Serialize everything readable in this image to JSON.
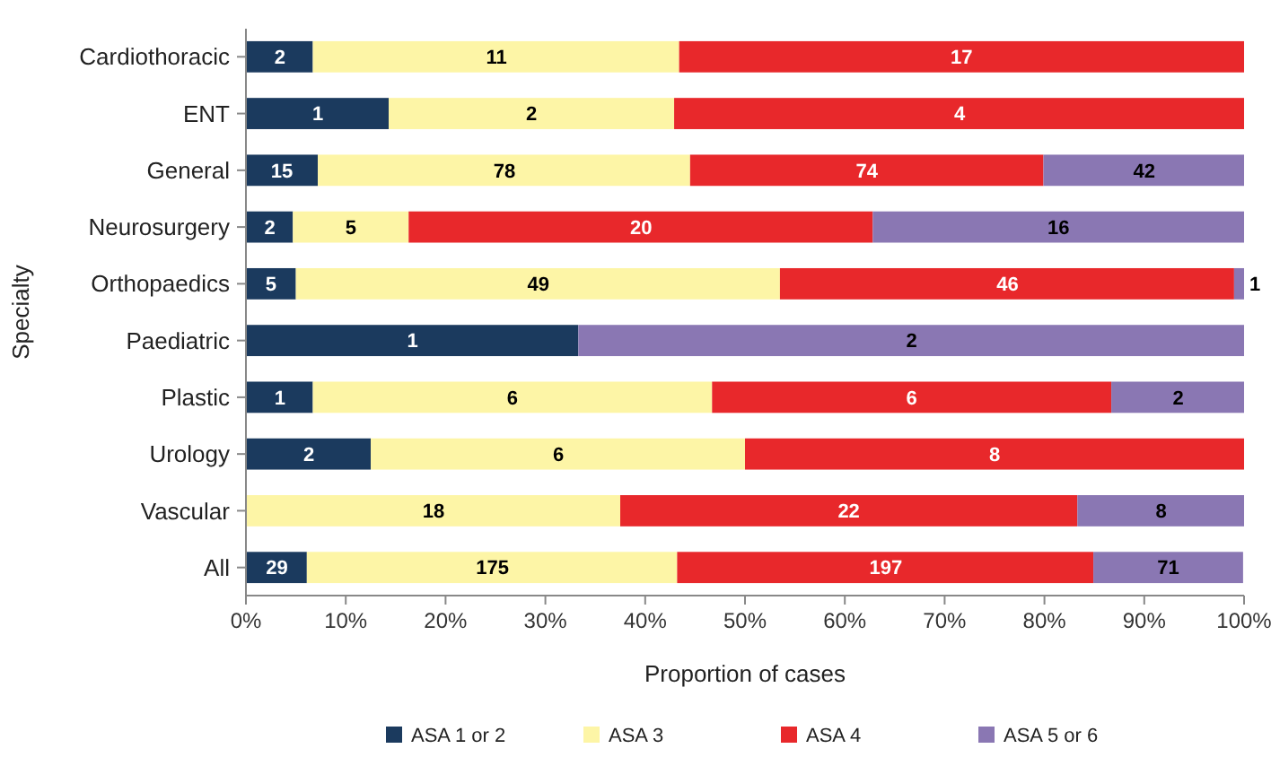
{
  "chart_data": {
    "type": "bar",
    "orientation": "horizontal",
    "stacked": true,
    "xlabel": "Proportion of cases",
    "ylabel": "Specialty",
    "categories": [
      "Cardiothoracic",
      "ENT",
      "General",
      "Neurosurgery",
      "Orthopaedics",
      "Paediatric",
      "Plastic",
      "Urology",
      "Vascular",
      "All"
    ],
    "xlim": [
      0,
      100
    ],
    "xticks": [
      {
        "value": 0,
        "label": "0%"
      },
      {
        "value": 10,
        "label": "10%"
      },
      {
        "value": 20,
        "label": "20%"
      },
      {
        "value": 30,
        "label": "30%"
      },
      {
        "value": 40,
        "label": "40%"
      },
      {
        "value": 50,
        "label": "50%"
      },
      {
        "value": 60,
        "label": "60%"
      },
      {
        "value": 70,
        "label": "70%"
      },
      {
        "value": 80,
        "label": "80%"
      },
      {
        "value": 90,
        "label": "90%"
      },
      {
        "value": 100,
        "label": "100%"
      }
    ],
    "series": [
      {
        "name": "ASA 1 or 2",
        "color": "#1b3a5e",
        "values": [
          6.7,
          14.3,
          7.2,
          4.7,
          5.0,
          33.3,
          6.7,
          12.5,
          0,
          6.1
        ]
      },
      {
        "name": "ASA 3",
        "color": "#fdf5a6",
        "values": [
          36.7,
          28.6,
          37.3,
          11.6,
          48.5,
          0,
          40.0,
          37.5,
          37.5,
          37.1
        ]
      },
      {
        "name": "ASA 4",
        "color": "#e8282b",
        "values": [
          56.6,
          57.1,
          35.4,
          46.5,
          45.5,
          0,
          40.0,
          50.0,
          45.8,
          41.7
        ]
      },
      {
        "name": "ASA 5 or 6",
        "color": "#8a77b3",
        "values": [
          0,
          0,
          20.1,
          37.2,
          1.0,
          66.7,
          13.3,
          0,
          16.7,
          15.0
        ]
      }
    ],
    "annotations": [
      {
        "text": "2",
        "x": 3.4,
        "y": "Cardiothoracic"
      },
      {
        "text": "11",
        "x": 25.1,
        "y": "Cardiothoracic"
      },
      {
        "text": "17",
        "x": 71.7,
        "y": "Cardiothoracic"
      },
      {
        "text": "1",
        "x": 7.2,
        "y": "ENT"
      },
      {
        "text": "2",
        "x": 28.6,
        "y": "ENT"
      },
      {
        "text": "4",
        "x": 71.5,
        "y": "ENT"
      },
      {
        "text": "15",
        "x": 3.6,
        "y": "General"
      },
      {
        "text": "78",
        "x": 25.9,
        "y": "General"
      },
      {
        "text": "74",
        "x": 62.2,
        "y": "General"
      },
      {
        "text": "42",
        "x": 90.0,
        "y": "General"
      },
      {
        "text": "2",
        "x": 2.4,
        "y": "Neurosurgery"
      },
      {
        "text": "5",
        "x": 10.5,
        "y": "Neurosurgery"
      },
      {
        "text": "20",
        "x": 39.6,
        "y": "Neurosurgery"
      },
      {
        "text": "16",
        "x": 81.4,
        "y": "Neurosurgery"
      },
      {
        "text": "5",
        "x": 2.5,
        "y": "Orthopaedics"
      },
      {
        "text": "49",
        "x": 29.3,
        "y": "Orthopaedics"
      },
      {
        "text": "46",
        "x": 76.3,
        "y": "Orthopaedics"
      },
      {
        "text": "1",
        "x": 100,
        "y": "Orthopaedics"
      },
      {
        "text": "1",
        "x": 16.7,
        "y": "Paediatric"
      },
      {
        "text": "2",
        "x": 66.7,
        "y": "Paediatric"
      },
      {
        "text": "1",
        "x": 3.4,
        "y": "Plastic"
      },
      {
        "text": "6",
        "x": 26.7,
        "y": "Plastic"
      },
      {
        "text": "6",
        "x": 66.7,
        "y": "Plastic"
      },
      {
        "text": "2",
        "x": 93.4,
        "y": "Plastic"
      },
      {
        "text": "2",
        "x": 6.3,
        "y": "Urology"
      },
      {
        "text": "6",
        "x": 31.3,
        "y": "Urology"
      },
      {
        "text": "8",
        "x": 75.0,
        "y": "Urology"
      },
      {
        "text": "18",
        "x": 18.8,
        "y": "Vascular"
      },
      {
        "text": "22",
        "x": 60.4,
        "y": "Vascular"
      },
      {
        "text": "8",
        "x": 91.7,
        "y": "Vascular"
      },
      {
        "text": "29",
        "x": 3.1,
        "y": "All"
      },
      {
        "text": "175",
        "x": 24.7,
        "y": "All"
      },
      {
        "text": "197",
        "x": 64.1,
        "y": "All"
      },
      {
        "text": "71",
        "x": 92.4,
        "y": "All"
      }
    ],
    "legend": "bottom",
    "grid": false
  }
}
